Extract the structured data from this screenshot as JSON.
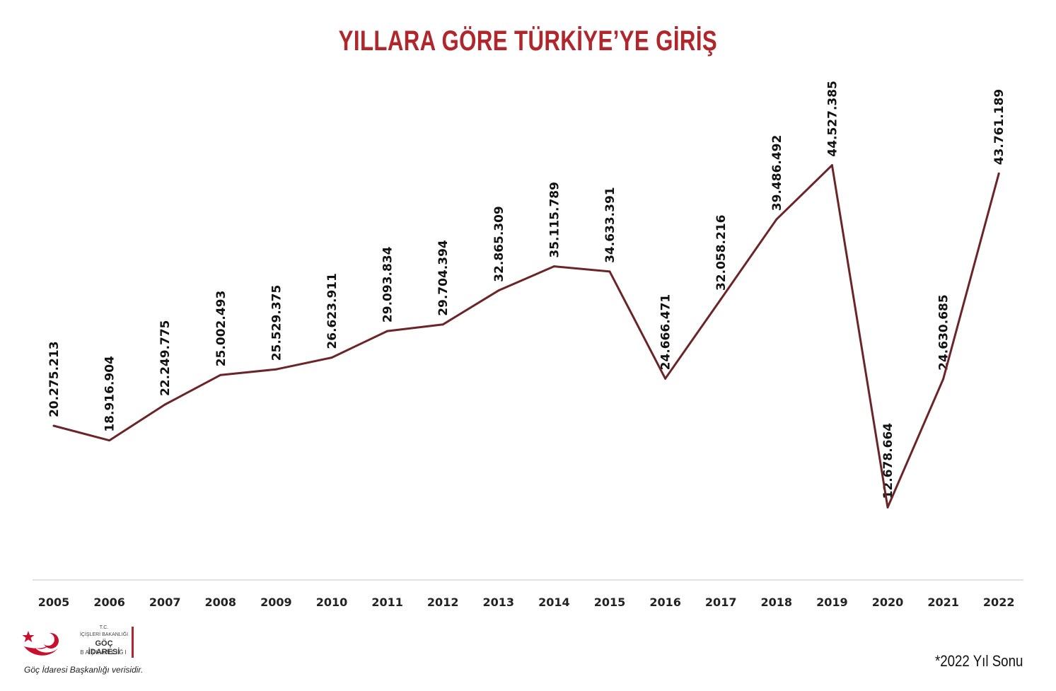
{
  "chart_data": {
    "type": "line",
    "title": "YILLARA GÖRE TÜRKİYE’YE GİRİŞ",
    "x": [
      "2005",
      "2006",
      "2007",
      "2008",
      "2009",
      "2010",
      "2011",
      "2012",
      "2013",
      "2014",
      "2015",
      "2016",
      "2017",
      "2018",
      "2019",
      "2020",
      "2021",
      "2022"
    ],
    "series": [
      {
        "values": [
          20275213,
          18916904,
          22249775,
          25002493,
          25529375,
          26623911,
          29093834,
          29704394,
          32865309,
          35115789,
          34633391,
          24666471,
          32058216,
          39486492,
          44527385,
          12678664,
          24630685,
          43761189
        ],
        "labels": [
          "20.275.213",
          "18.916.904",
          "22.249.775",
          "25.002.493",
          "25.529.375",
          "26.623.911",
          "29.093.834",
          "29.704.394",
          "32.865.309",
          "35.115.789",
          "34.633.391",
          "24.666.471",
          "32.058.216",
          "39.486.492",
          "44.527.385",
          "12.678.664",
          "24.630.685",
          "43.761.189"
        ],
        "color": "#6b2528"
      }
    ],
    "xlabel": "",
    "ylabel": "",
    "grid": false,
    "legend": "none"
  },
  "colors": {
    "title": "#b0262b",
    "line": "#6b2528",
    "axis": "#d9d9d9"
  },
  "logo": {
    "icon": "crescent-star-logo",
    "line1": "T.C.",
    "line2": "İÇİŞLERİ BAKANLIĞI",
    "line3": "GÖÇ İDARESİ",
    "line4": "BAŞKANLIĞI",
    "source": "Göç İdaresi Başkanlığı verisidir."
  },
  "footnote": "*2022 Yıl Sonu"
}
